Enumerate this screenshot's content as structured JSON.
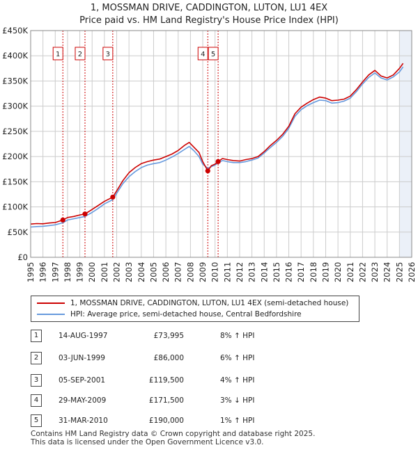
{
  "title_line1": "1, MOSSMAN DRIVE, CADDINGTON, LUTON, LU1 4EX",
  "title_line2": "Price paid vs. HM Land Registry's House Price Index (HPI)",
  "legend": [
    {
      "label": "1, MOSSMAN DRIVE, CADDINGTON, LUTON, LU1 4EX (semi-detached house)",
      "color": "#cc0000"
    },
    {
      "label": "HPI: Average price, semi-detached house, Central Bedfordshire",
      "color": "#6699dd"
    }
  ],
  "transactions": [
    {
      "num": "1",
      "date": "14-AUG-1997",
      "price": "£73,995",
      "hpi": "8% ↑ HPI"
    },
    {
      "num": "2",
      "date": "03-JUN-1999",
      "price": "£86,000",
      "hpi": "6% ↑ HPI"
    },
    {
      "num": "3",
      "date": "05-SEP-2001",
      "price": "£119,500",
      "hpi": "4% ↑ HPI"
    },
    {
      "num": "4",
      "date": "29-MAY-2009",
      "price": "£171,500",
      "hpi": "3% ↓ HPI"
    },
    {
      "num": "5",
      "date": "31-MAR-2010",
      "price": "£190,000",
      "hpi": "1% ↑ HPI"
    }
  ],
  "footer_line1": "Contains HM Land Registry data © Crown copyright and database right 2025.",
  "footer_line2": "This data is licensed under the Open Government Licence v3.0.",
  "colors": {
    "price": "#cc0000",
    "hpi": "#6699dd",
    "grid": "#cccccc",
    "plot_bg": "#ffffff",
    "band": "#dde6f3",
    "marker_line": "#cc0000",
    "dot": "#cc0000"
  },
  "chart_data": {
    "type": "line",
    "title": "Price paid vs. HM Land Registry's House Price Index (HPI)",
    "xlabel": "",
    "ylabel": "",
    "xlim": [
      1995,
      2026
    ],
    "ylim": [
      0,
      450000
    ],
    "grid": true,
    "x_ticks": [
      1995,
      1996,
      1997,
      1998,
      1999,
      2000,
      2001,
      2002,
      2003,
      2004,
      2005,
      2006,
      2007,
      2008,
      2009,
      2010,
      2011,
      2012,
      2013,
      2014,
      2015,
      2016,
      2017,
      2018,
      2019,
      2020,
      2021,
      2022,
      2023,
      2024,
      2025,
      2026
    ],
    "y_ticks": [
      0,
      50000,
      100000,
      150000,
      200000,
      250000,
      300000,
      350000,
      400000,
      450000
    ],
    "y_tick_labels": [
      "£0",
      "£50K",
      "£100K",
      "£150K",
      "£200K",
      "£250K",
      "£300K",
      "£350K",
      "£400K",
      "£450K"
    ],
    "forecast_from": 2025.0,
    "series": [
      {
        "name": "1, MOSSMAN DRIVE, CADDINGTON, LUTON, LU1 4EX (semi-detached house)",
        "x": [
          1995.0,
          1995.5,
          1996.0,
          1996.5,
          1997.0,
          1997.62,
          1998.0,
          1998.5,
          1999.0,
          1999.42,
          2000.0,
          2000.5,
          2001.0,
          2001.68,
          2002.0,
          2002.5,
          2003.0,
          2003.5,
          2004.0,
          2004.5,
          2005.0,
          2005.5,
          2006.0,
          2006.5,
          2007.0,
          2007.5,
          2007.9,
          2008.3,
          2008.7,
          2009.0,
          2009.41,
          2009.7,
          2010.0,
          2010.25,
          2010.6,
          2011.0,
          2011.5,
          2012.0,
          2012.5,
          2013.0,
          2013.5,
          2014.0,
          2014.5,
          2015.0,
          2015.5,
          2016.0,
          2016.5,
          2017.0,
          2017.5,
          2018.0,
          2018.5,
          2019.0,
          2019.5,
          2020.0,
          2020.5,
          2021.0,
          2021.5,
          2022.0,
          2022.5,
          2023.0,
          2023.5,
          2024.0,
          2024.5,
          2025.0,
          2025.3
        ],
        "values": [
          66000,
          67000,
          66500,
          68000,
          69000,
          73995,
          79000,
          81000,
          84000,
          86000,
          95000,
          103000,
          111000,
          119500,
          132000,
          152000,
          168000,
          178000,
          186000,
          190000,
          193000,
          195000,
          200000,
          205000,
          212000,
          222000,
          228000,
          218000,
          208000,
          190000,
          171500,
          182000,
          185000,
          190000,
          196000,
          194000,
          192000,
          191000,
          194000,
          196000,
          200000,
          210000,
          222000,
          232000,
          244000,
          260000,
          285000,
          298000,
          306000,
          313000,
          318000,
          316000,
          311000,
          312000,
          314000,
          320000,
          333000,
          348000,
          362000,
          371000,
          360000,
          356000,
          362000,
          375000,
          385000
        ]
      },
      {
        "name": "HPI: Average price, semi-detached house, Central Bedfordshire",
        "x": [
          1995.0,
          1995.5,
          1996.0,
          1996.5,
          1997.0,
          1997.62,
          1998.0,
          1998.5,
          1999.0,
          1999.42,
          2000.0,
          2000.5,
          2001.0,
          2001.68,
          2002.0,
          2002.5,
          2003.0,
          2003.5,
          2004.0,
          2004.5,
          2005.0,
          2005.5,
          2006.0,
          2006.5,
          2007.0,
          2007.5,
          2007.9,
          2008.3,
          2008.7,
          2009.0,
          2009.41,
          2009.7,
          2010.0,
          2010.25,
          2010.6,
          2011.0,
          2011.5,
          2012.0,
          2012.5,
          2013.0,
          2013.5,
          2014.0,
          2014.5,
          2015.0,
          2015.5,
          2016.0,
          2016.5,
          2017.0,
          2017.5,
          2018.0,
          2018.5,
          2019.0,
          2019.5,
          2020.0,
          2020.5,
          2021.0,
          2021.5,
          2022.0,
          2022.5,
          2023.0,
          2023.5,
          2024.0,
          2024.5,
          2025.0,
          2025.3
        ],
        "values": [
          60000,
          61000,
          61500,
          63000,
          64500,
          68500,
          74000,
          76500,
          79000,
          81000,
          89000,
          97000,
          106000,
          114500,
          127000,
          146000,
          160000,
          170000,
          178000,
          183000,
          186000,
          188000,
          193000,
          199000,
          206000,
          214000,
          220000,
          211000,
          200000,
          185000,
          176500,
          180000,
          183000,
          187500,
          192000,
          190000,
          188000,
          188000,
          190000,
          193000,
          197000,
          207000,
          218000,
          228000,
          240000,
          256000,
          280000,
          293000,
          301000,
          307000,
          312000,
          311000,
          306000,
          307000,
          310000,
          316000,
          329000,
          344000,
          357000,
          366000,
          356000,
          352000,
          358000,
          368000,
          378000
        ]
      }
    ],
    "annotations": [
      {
        "label": "1",
        "x": 1997.62,
        "value": 73995
      },
      {
        "label": "2",
        "x": 1999.42,
        "value": 86000
      },
      {
        "label": "3",
        "x": 2001.68,
        "value": 119500
      },
      {
        "label": "4",
        "x": 2009.41,
        "value": 171500
      },
      {
        "label": "5",
        "x": 2010.25,
        "value": 190000
      }
    ]
  }
}
